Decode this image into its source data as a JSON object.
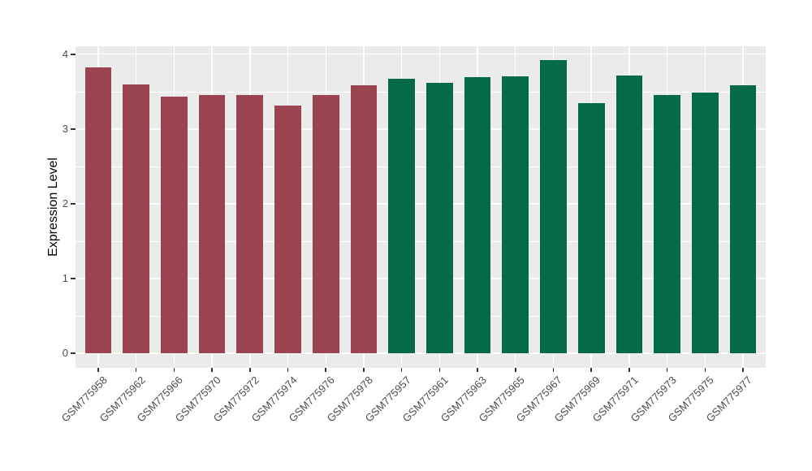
{
  "figure": {
    "background": "#FFFFFF"
  },
  "panel": {
    "background": "#EBEBEB",
    "grid_color": "#FFFFFF"
  },
  "axis_style": {
    "tick_mark_color": "#333333",
    "tick_label_color": "#4D4D4D",
    "axis_title_color": "#000000"
  },
  "chart_data": {
    "type": "bar",
    "title": "",
    "xlabel": "",
    "ylabel": "Expression Level",
    "ylim": [
      0,
      4.1
    ],
    "yticks": [
      "0",
      "1",
      "2",
      "3",
      "4"
    ],
    "ytick_values": [
      0,
      1,
      2,
      3,
      4
    ],
    "minor_ytick_values": [
      0.5,
      1.5,
      2.5,
      3.5
    ],
    "grid": "on",
    "legend": "none",
    "categories": [
      "GSM775958",
      "GSM775962",
      "GSM775966",
      "GSM775970",
      "GSM775972",
      "GSM775974",
      "GSM775976",
      "GSM775978",
      "GSM775957",
      "GSM775961",
      "GSM775963",
      "GSM775965",
      "GSM775967",
      "GSM775969",
      "GSM775971",
      "GSM775973",
      "GSM775975",
      "GSM775977"
    ],
    "values": [
      3.82,
      3.6,
      3.43,
      3.46,
      3.46,
      3.31,
      3.46,
      3.58,
      3.67,
      3.62,
      3.69,
      3.7,
      3.92,
      3.35,
      3.72,
      3.45,
      3.49,
      3.58
    ],
    "colors": [
      "#9C4352",
      "#9C4352",
      "#9C4352",
      "#9C4352",
      "#9C4352",
      "#9C4352",
      "#9C4352",
      "#9C4352",
      "#046A49",
      "#046A49",
      "#046A49",
      "#046A49",
      "#046A49",
      "#046A49",
      "#046A49",
      "#046A49",
      "#046A49",
      "#046A49"
    ],
    "group_colors": {
      "left_group": "#9C4352",
      "right_group": "#046A49"
    }
  }
}
